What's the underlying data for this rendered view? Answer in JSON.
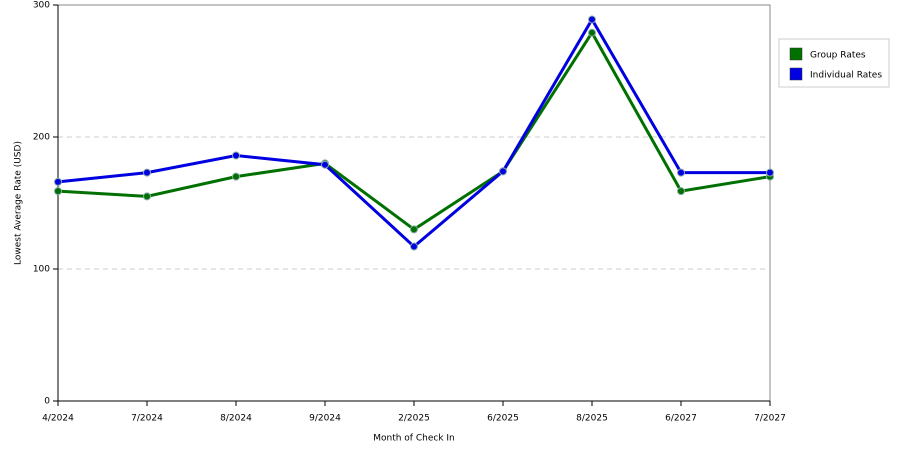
{
  "chart_data": {
    "type": "line",
    "x_label": "Month of Check In",
    "y_label": "Lowest Average Rate (USD)",
    "categories": [
      "4/2024",
      "7/2024",
      "8/2024",
      "9/2024",
      "2/2025",
      "6/2025",
      "8/2025",
      "6/2027",
      "7/2027"
    ],
    "series": [
      {
        "name": "Group Rates",
        "color": "#007000",
        "values": [
          159,
          155,
          170,
          180,
          130,
          174,
          279,
          159,
          170
        ]
      },
      {
        "name": "Individual Rates",
        "color": "#0000e0",
        "values": [
          166,
          173,
          186,
          179,
          117,
          174,
          289,
          173,
          173
        ]
      }
    ],
    "ylim": [
      0,
      300
    ],
    "yticks": [
      0,
      100,
      200,
      300
    ],
    "grid": true,
    "legend": "right"
  }
}
